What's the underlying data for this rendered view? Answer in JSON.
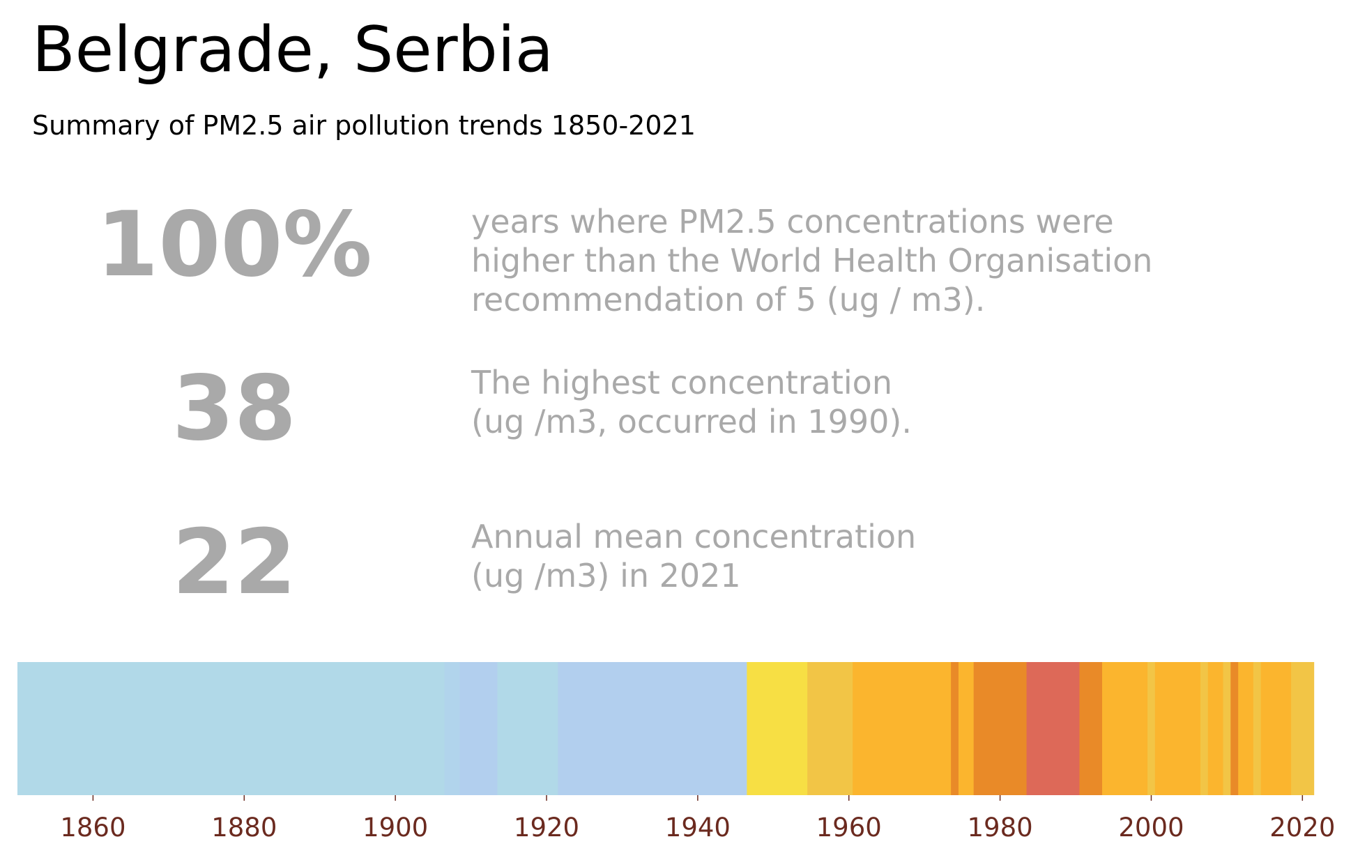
{
  "header": {
    "title": "Belgrade, Serbia",
    "subtitle": "Summary of PM2.5 air pollution trends 1850-2021"
  },
  "stats": [
    {
      "value": "100%",
      "description": "years where PM2.5 concentrations were\nhigher than the World Health Organisation\nrecommendation of 5 (ug / m3)."
    },
    {
      "value": "38",
      "description": "The highest concentration\n(ug /m3, occurred in 1990)."
    },
    {
      "value": "22",
      "description": "Annual mean concentration\n(ug /m3) in 2021"
    }
  ],
  "colors": {
    "text_muted": "#a9a9a9",
    "tick_label": "#6b2a1f"
  },
  "chart_data": {
    "type": "heatmap",
    "title": "",
    "xlabel": "",
    "ylabel": "",
    "xlim": [
      1850,
      2022
    ],
    "x_ticks": [
      1860,
      1880,
      1900,
      1920,
      1940,
      1960,
      1980,
      2000,
      2020
    ],
    "grid": false,
    "legend": "none",
    "stripes": [
      {
        "start": 1850,
        "end": 1906.5,
        "color": "#b1d9e8"
      },
      {
        "start": 1906.5,
        "end": 1908.5,
        "color": "#b1d4ec"
      },
      {
        "start": 1908.5,
        "end": 1913.5,
        "color": "#b2cfee"
      },
      {
        "start": 1913.5,
        "end": 1921.5,
        "color": "#b1d9e8"
      },
      {
        "start": 1921.5,
        "end": 1946.5,
        "color": "#b2cfee"
      },
      {
        "start": 1946.5,
        "end": 1954.5,
        "color": "#f7df44"
      },
      {
        "start": 1954.5,
        "end": 1960.5,
        "color": "#f2c546"
      },
      {
        "start": 1960.5,
        "end": 1973.5,
        "color": "#fbb52e"
      },
      {
        "start": 1973.5,
        "end": 1974.5,
        "color": "#e98a28"
      },
      {
        "start": 1974.5,
        "end": 1976.5,
        "color": "#fbb52e"
      },
      {
        "start": 1976.5,
        "end": 1983.5,
        "color": "#e98a28"
      },
      {
        "start": 1983.5,
        "end": 1990.5,
        "color": "#dd6958"
      },
      {
        "start": 1990.5,
        "end": 1993.5,
        "color": "#e98a28"
      },
      {
        "start": 1993.5,
        "end": 1999.5,
        "color": "#fbb52e"
      },
      {
        "start": 1999.5,
        "end": 2000.5,
        "color": "#f2c546"
      },
      {
        "start": 2000.5,
        "end": 2006.5,
        "color": "#fbb52e"
      },
      {
        "start": 2006.5,
        "end": 2007.5,
        "color": "#f2c546"
      },
      {
        "start": 2007.5,
        "end": 2009.5,
        "color": "#fbb52e"
      },
      {
        "start": 2009.5,
        "end": 2010.5,
        "color": "#f2c546"
      },
      {
        "start": 2010.5,
        "end": 2011.5,
        "color": "#e98a28"
      },
      {
        "start": 2011.5,
        "end": 2013.5,
        "color": "#fbb52e"
      },
      {
        "start": 2013.5,
        "end": 2014.5,
        "color": "#f2c546"
      },
      {
        "start": 2014.5,
        "end": 2018.5,
        "color": "#fbb52e"
      },
      {
        "start": 2018.5,
        "end": 2021.5,
        "color": "#f2c546"
      }
    ]
  }
}
